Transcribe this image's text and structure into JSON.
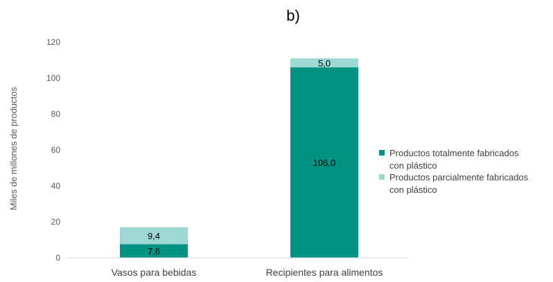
{
  "chart_data": {
    "type": "bar",
    "stacked": true,
    "title": "b)",
    "xlabel": "",
    "ylabel": "Miles de millones de productos",
    "categories": [
      "Vasos para bebidas",
      "Recipientes para alimentos"
    ],
    "series": [
      {
        "name": "Productos totalmente fabricados con plástico",
        "legend_lines": [
          "Productos totalmente fabricados",
          "con plástico"
        ],
        "color": "#009384",
        "values": [
          7.6,
          106.0
        ],
        "labels": [
          "7,6",
          "106,0"
        ]
      },
      {
        "name": "Productos parcialmente fabricados con plástico",
        "legend_lines": [
          "Productos parcialmente fabricados",
          "con plástico"
        ],
        "color": "#9dd8d3",
        "values": [
          9.4,
          5.0
        ],
        "labels": [
          "9,4",
          "5,0"
        ]
      }
    ],
    "ylim": [
      0,
      120
    ],
    "yticks": [
      0,
      20,
      40,
      60,
      80,
      100,
      120
    ],
    "grid": false,
    "legend_position": "right"
  }
}
